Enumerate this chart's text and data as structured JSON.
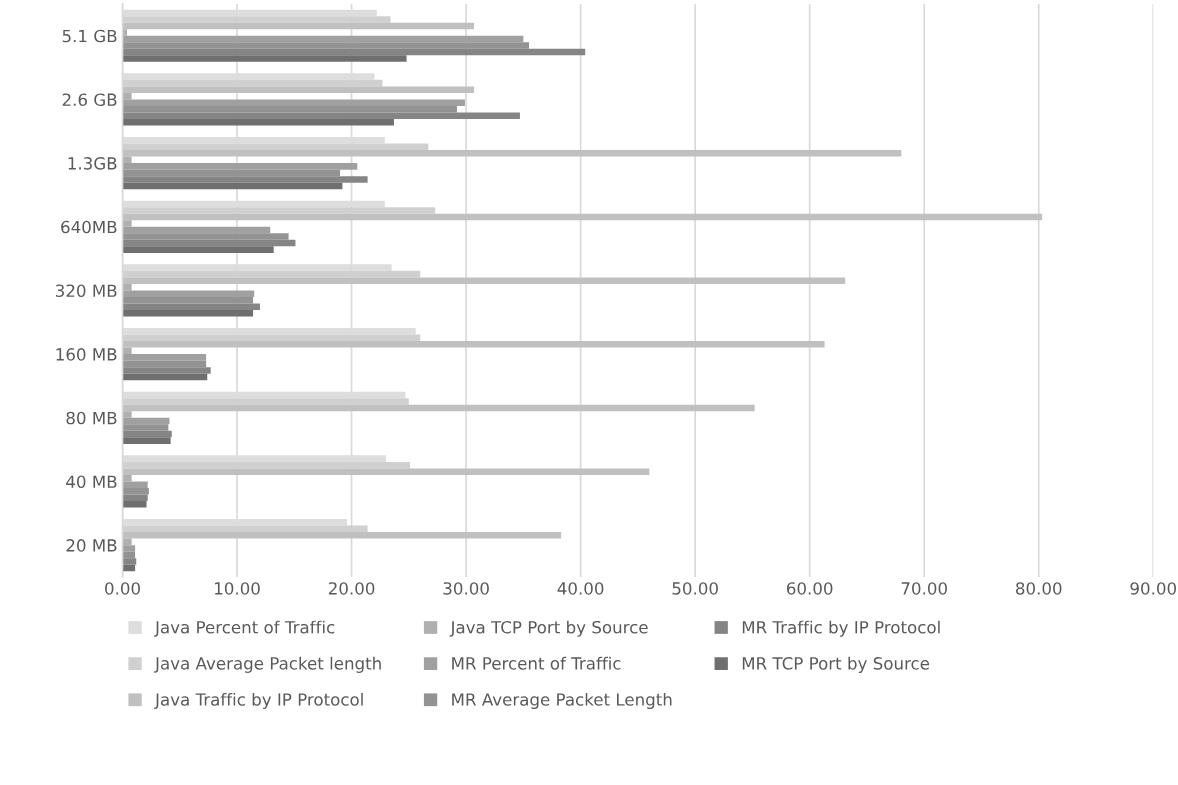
{
  "chart_data": {
    "type": "bar",
    "orientation": "horizontal",
    "categories": [
      "5.1 GB",
      "2.6 GB",
      "1.3GB",
      "640MB",
      "320 MB",
      "160 MB",
      "80 MB",
      "40 MB",
      "20 MB"
    ],
    "series": [
      {
        "name": "Java Percent of Traffic",
        "color": "#dddddd",
        "values": [
          22.2,
          22.0,
          22.9,
          22.9,
          23.5,
          25.6,
          24.7,
          23.0,
          19.6
        ]
      },
      {
        "name": "Java Average Packet length",
        "color": "#d0d0d0",
        "values": [
          23.4,
          22.7,
          26.7,
          27.3,
          26.0,
          26.0,
          25.0,
          25.1,
          21.4
        ]
      },
      {
        "name": "Java Traffic by IP Protocol",
        "color": "#c0c0c0",
        "values": [
          30.7,
          30.7,
          68.0,
          80.3,
          63.1,
          61.3,
          55.2,
          46.0,
          38.3
        ]
      },
      {
        "name": "Java TCP Port by Source",
        "color": "#b0b0b0",
        "values": [
          0.4,
          0.8,
          0.8,
          0.8,
          0.8,
          0.8,
          0.8,
          0.8,
          0.8
        ]
      },
      {
        "name": "MR Percent of Traffic",
        "color": "#a0a0a0",
        "values": [
          35.0,
          29.9,
          20.5,
          12.9,
          11.5,
          7.3,
          4.1,
          2.2,
          1.1
        ]
      },
      {
        "name": "MR Average Packet Length",
        "color": "#939393",
        "values": [
          35.5,
          29.2,
          19.0,
          14.5,
          11.4,
          7.3,
          4.0,
          2.3,
          1.1
        ]
      },
      {
        "name": "MR Traffic by IP Protocol",
        "color": "#858585",
        "values": [
          40.4,
          34.7,
          21.4,
          15.1,
          12.0,
          7.7,
          4.3,
          2.2,
          1.2
        ]
      },
      {
        "name": "MR TCP Port by Source",
        "color": "#6f6f6f",
        "values": [
          24.8,
          23.7,
          19.2,
          13.2,
          11.4,
          7.4,
          4.2,
          2.1,
          1.1
        ]
      }
    ],
    "xlim": [
      0,
      90
    ],
    "xticks": [
      {
        "value": 0,
        "label": "0.00"
      },
      {
        "value": 10,
        "label": "10.00"
      },
      {
        "value": 20,
        "label": "20.00"
      },
      {
        "value": 30,
        "label": "30.00"
      },
      {
        "value": 40,
        "label": "40.00"
      },
      {
        "value": 50,
        "label": "50.00"
      },
      {
        "value": 60,
        "label": "60.00"
      },
      {
        "value": 70,
        "label": "70.00"
      },
      {
        "value": 80,
        "label": "80.00"
      },
      {
        "value": 90,
        "label": "90.00"
      }
    ],
    "grid": "x",
    "legend": "bottom"
  }
}
